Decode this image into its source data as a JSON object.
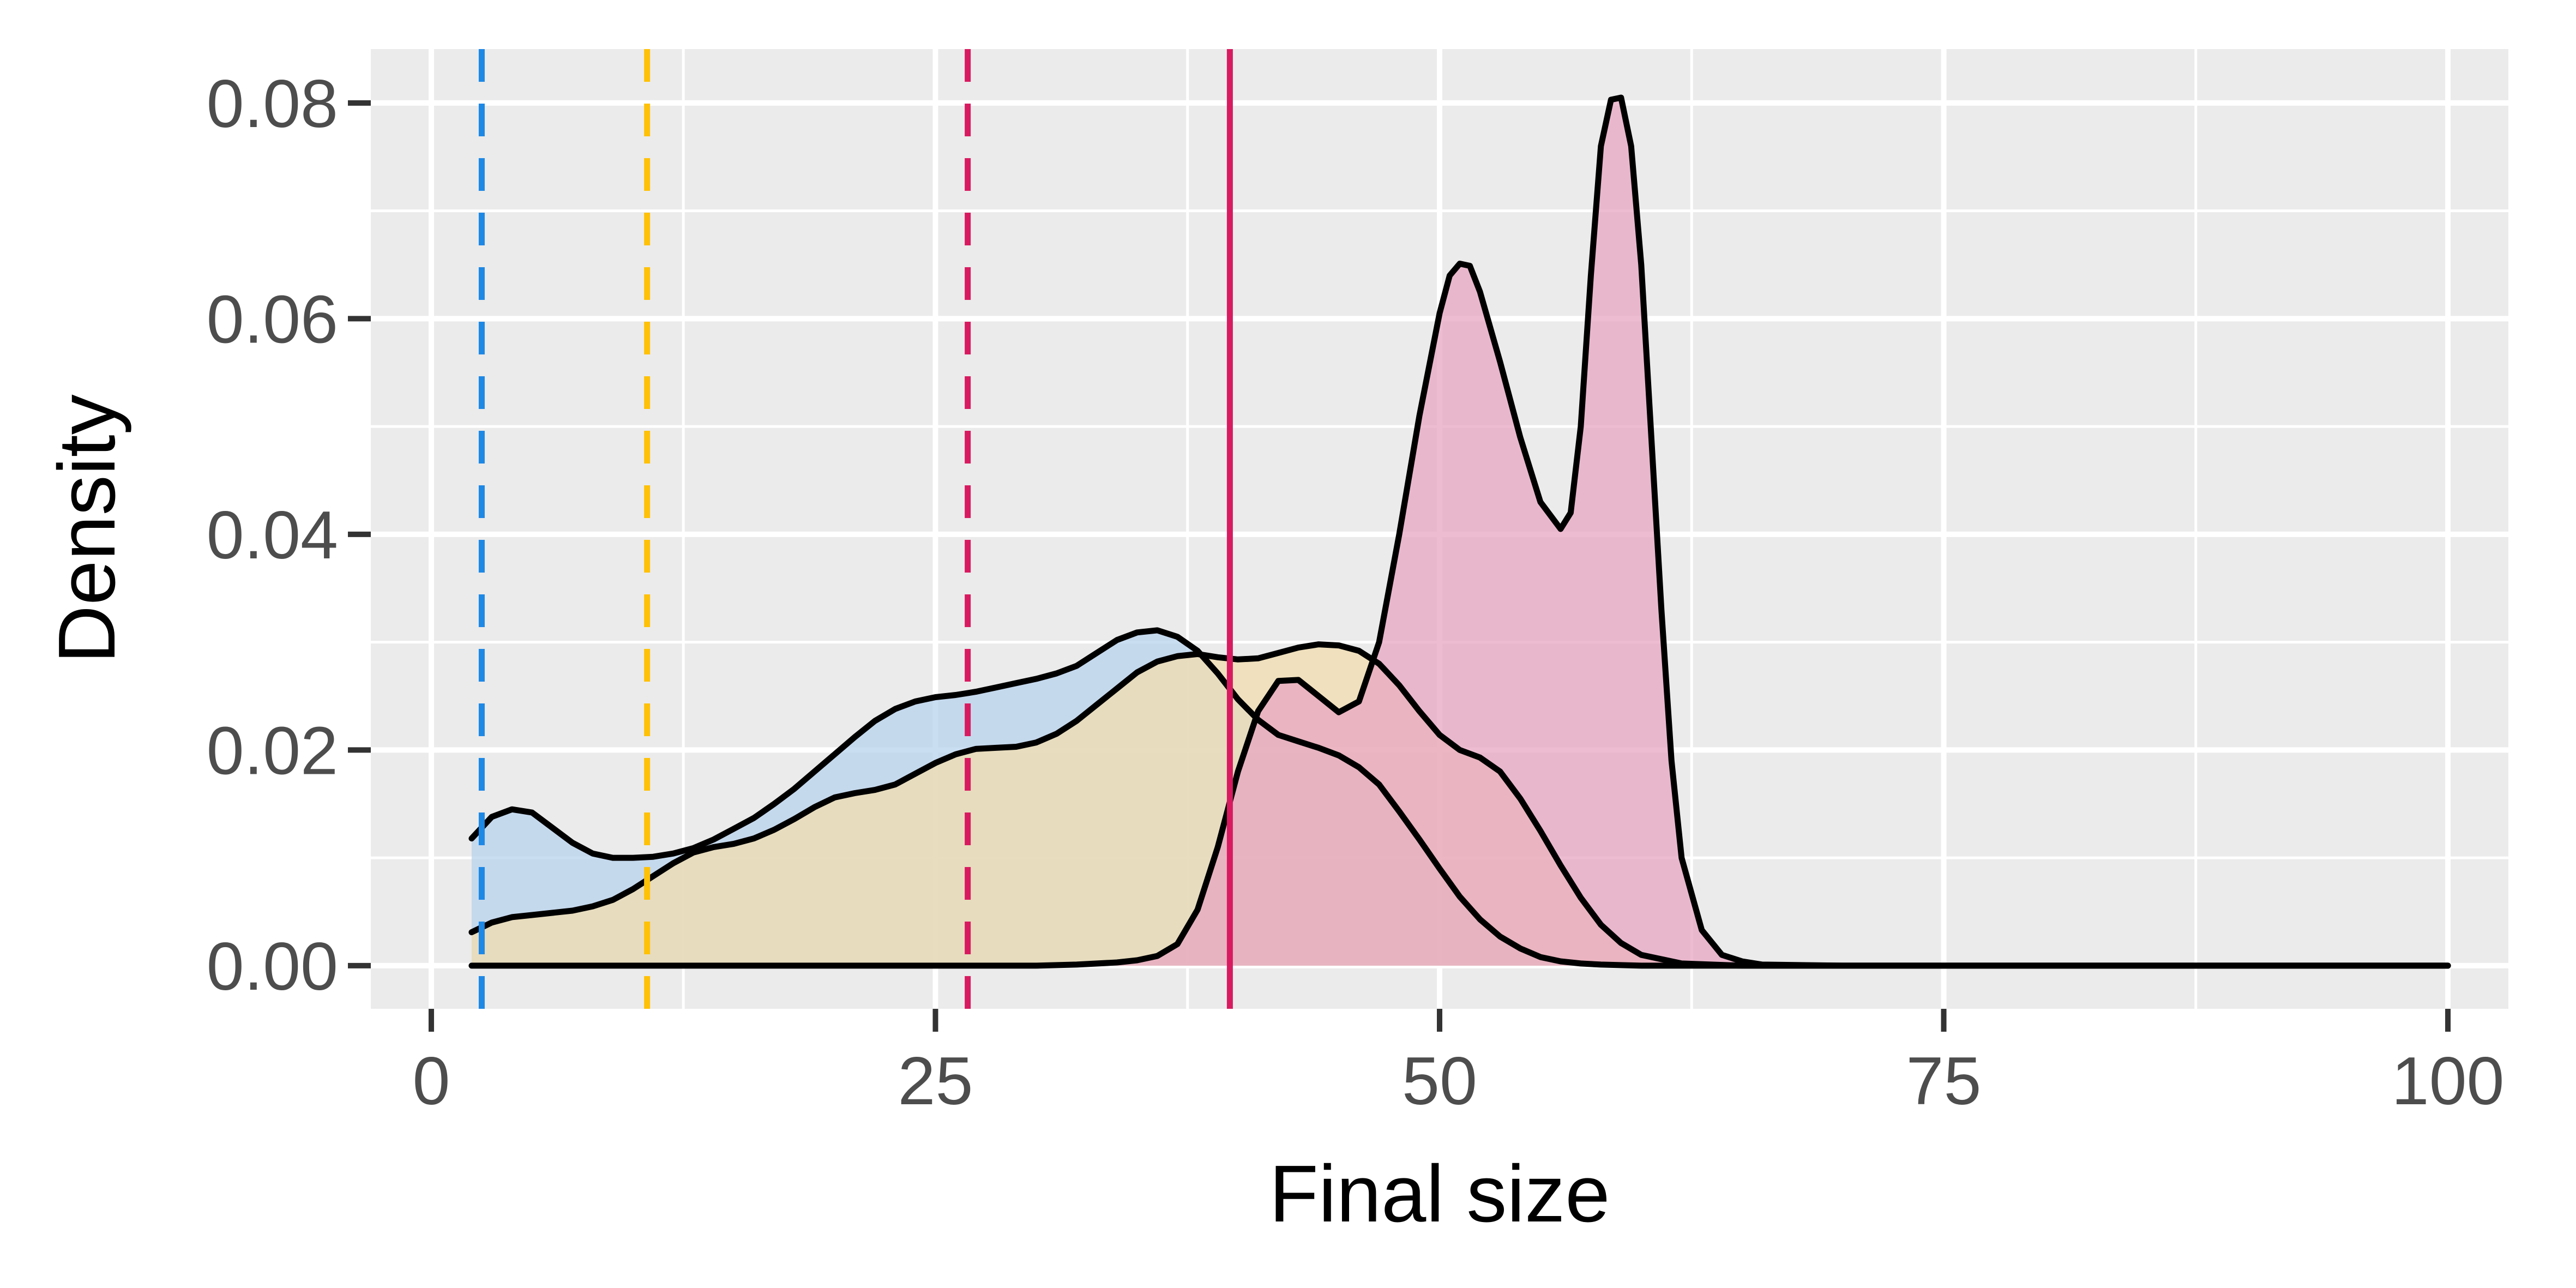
{
  "chart_data": {
    "type": "area",
    "title": "",
    "xlabel": "Final size",
    "ylabel": "Density",
    "xlim": [
      -3,
      103
    ],
    "ylim": [
      -0.004,
      0.085
    ],
    "x_ticks": [
      0,
      25,
      50,
      75,
      100
    ],
    "x_tick_labels": [
      "0",
      "25",
      "50",
      "75",
      "100"
    ],
    "y_ticks": [
      0.0,
      0.02,
      0.04,
      0.06,
      0.08
    ],
    "y_tick_labels": [
      "0.00",
      "0.02",
      "0.04",
      "0.06",
      "0.08"
    ],
    "x_minor_gridlines": [
      12.5,
      37.5,
      62.5,
      87.5
    ],
    "y_minor_gridlines": [
      0.01,
      0.03,
      0.05,
      0.07
    ],
    "grid": true,
    "legend": "none",
    "panel_background": "#ebebeb",
    "grid_color": "#ffffff",
    "outline_color": "#000000",
    "series": [
      {
        "fill": "#b8d3ee",
        "x": [
          2,
          3,
          4,
          5,
          6,
          7,
          8,
          9,
          10,
          11,
          12,
          13,
          14,
          15,
          16,
          17,
          18,
          19,
          20,
          21,
          22,
          23,
          24,
          25,
          26,
          27,
          28,
          29,
          30,
          31,
          32,
          33,
          34,
          35,
          36,
          37,
          38,
          39,
          40,
          41,
          42,
          43,
          44,
          45,
          46,
          47,
          48,
          49,
          50,
          51,
          52,
          53,
          54,
          55,
          56,
          57,
          58,
          60,
          62,
          65,
          70,
          80,
          90,
          100
        ],
        "y": [
          0.0118,
          0.0138,
          0.0145,
          0.0142,
          0.0128,
          0.0114,
          0.0104,
          0.01,
          0.01,
          0.0101,
          0.0104,
          0.0109,
          0.0117,
          0.0127,
          0.0137,
          0.015,
          0.0164,
          0.018,
          0.0196,
          0.0212,
          0.0227,
          0.0238,
          0.0245,
          0.0249,
          0.0251,
          0.0254,
          0.0258,
          0.0262,
          0.0266,
          0.0271,
          0.0278,
          0.029,
          0.0302,
          0.0309,
          0.0311,
          0.0305,
          0.0292,
          0.0271,
          0.0247,
          0.0228,
          0.0214,
          0.0208,
          0.0202,
          0.0195,
          0.0184,
          0.0168,
          0.0143,
          0.0117,
          0.009,
          0.0064,
          0.0043,
          0.0027,
          0.0016,
          0.0008,
          0.0004,
          0.0002,
          0.0001,
          0.0,
          0.0,
          0.0,
          0.0,
          0.0,
          0.0,
          0.0
        ]
      },
      {
        "fill": "#f2dcae",
        "x": [
          2,
          3,
          4,
          5,
          6,
          7,
          8,
          9,
          10,
          11,
          12,
          13,
          14,
          15,
          16,
          17,
          18,
          19,
          20,
          21,
          22,
          23,
          24,
          25,
          26,
          27,
          28,
          29,
          30,
          31,
          32,
          33,
          34,
          35,
          36,
          37,
          38,
          39,
          40,
          41,
          42,
          43,
          44,
          45,
          46,
          47,
          48,
          49,
          50,
          51,
          52,
          53,
          54,
          55,
          56,
          57,
          58,
          59,
          60,
          62,
          65,
          70,
          80,
          90,
          100
        ],
        "y": [
          0.0031,
          0.004,
          0.0045,
          0.0047,
          0.0049,
          0.0051,
          0.0055,
          0.0061,
          0.0071,
          0.0083,
          0.0095,
          0.0105,
          0.011,
          0.0113,
          0.0118,
          0.0126,
          0.0136,
          0.0147,
          0.0156,
          0.016,
          0.0163,
          0.0168,
          0.0178,
          0.0188,
          0.0196,
          0.0201,
          0.0202,
          0.0203,
          0.0207,
          0.0215,
          0.0227,
          0.0242,
          0.0257,
          0.0272,
          0.0282,
          0.0287,
          0.0289,
          0.0286,
          0.0284,
          0.0285,
          0.029,
          0.0295,
          0.0298,
          0.0297,
          0.0292,
          0.028,
          0.026,
          0.0236,
          0.0214,
          0.02,
          0.0193,
          0.018,
          0.0155,
          0.0125,
          0.0093,
          0.0063,
          0.0038,
          0.0021,
          0.001,
          0.0002,
          0.0,
          0.0,
          0.0,
          0.0,
          0.0
        ]
      },
      {
        "fill": "#e8a6c2",
        "x": [
          2,
          30,
          32,
          34,
          35,
          36,
          37,
          38,
          39,
          40,
          41,
          42,
          43,
          44,
          45,
          46,
          47,
          48,
          49,
          50,
          50.5,
          51,
          51.5,
          52,
          53,
          54,
          55,
          56,
          56.5,
          57,
          57.5,
          58,
          58.5,
          59,
          59.5,
          60,
          60.5,
          61,
          61.5,
          62,
          63,
          64,
          65,
          66,
          70,
          80,
          90,
          100
        ],
        "y": [
          0.0,
          0.0,
          0.0001,
          0.0003,
          0.0005,
          0.0009,
          0.002,
          0.0052,
          0.011,
          0.018,
          0.0236,
          0.0264,
          0.0265,
          0.025,
          0.0235,
          0.0245,
          0.03,
          0.04,
          0.051,
          0.0605,
          0.064,
          0.0651,
          0.0649,
          0.0625,
          0.056,
          0.049,
          0.043,
          0.0405,
          0.042,
          0.05,
          0.064,
          0.076,
          0.0803,
          0.0805,
          0.076,
          0.065,
          0.049,
          0.033,
          0.019,
          0.01,
          0.0033,
          0.001,
          0.0004,
          0.0001,
          0.0,
          0.0,
          0.0,
          0.0
        ]
      }
    ],
    "reference_lines": [
      {
        "x": 2.5,
        "color": "#1e88e5",
        "style": "dashed"
      },
      {
        "x": 10.7,
        "color": "#ffc107",
        "style": "dashed"
      },
      {
        "x": 26.6,
        "color": "#d81b60",
        "style": "dashed"
      },
      {
        "x": 39.6,
        "color": "#d81b60",
        "style": "solid"
      }
    ]
  }
}
